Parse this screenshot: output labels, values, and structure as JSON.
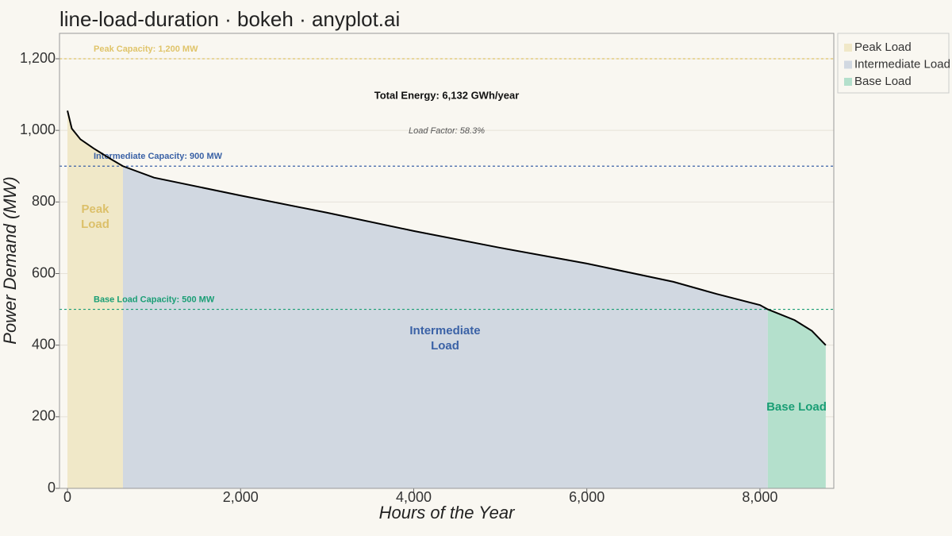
{
  "chart_data": {
    "type": "area",
    "title": "line-load-duration · bokeh · anyplot.ai",
    "x_label": "Hours of the Year",
    "y_label": "Power Demand (MW)",
    "xlim": [
      -92,
      8853
    ],
    "ylim": [
      0,
      1271
    ],
    "xticks": [
      0,
      {
        "value": 2000,
        "label": "2,000"
      },
      {
        "value": 4000,
        "label": "4,000"
      },
      {
        "value": 6000,
        "label": "6,000"
      },
      {
        "value": 8000,
        "label": "8,000"
      }
    ],
    "yticks": [
      0,
      200,
      400,
      600,
      800,
      {
        "value": 1000,
        "label": "1,000"
      },
      {
        "value": 1200,
        "label": "1,200"
      }
    ],
    "grid": true,
    "legend": "right",
    "series": [
      {
        "name": "Peak Load",
        "color": "#f0e8c8",
        "label_color": "#dcc06a",
        "label_lines": [
          "Peak",
          "Load"
        ],
        "x": [
          0,
          50,
          150,
          300,
          500,
          641
        ],
        "values": [
          1055,
          1005,
          975,
          950,
          920,
          900
        ]
      },
      {
        "name": "Intermediate Load",
        "color": "#d1d8e1",
        "label_color": "#3b62a6",
        "label_lines": [
          "Intermediate",
          "Load"
        ],
        "x": [
          641,
          1000,
          2000,
          3000,
          4000,
          5000,
          6000,
          7000,
          7500,
          8000,
          8091
        ],
        "values": [
          900,
          868,
          818,
          770,
          719,
          672,
          628,
          577,
          543,
          512,
          500
        ]
      },
      {
        "name": "Base Load",
        "color": "#b4e0cc",
        "label_color": "#1a9e75",
        "label_lines": [
          "Base Load"
        ],
        "x": [
          8091,
          8400,
          8600,
          8700,
          8760
        ],
        "values": [
          500,
          470,
          440,
          415,
          400
        ]
      }
    ],
    "curve": {
      "color": "#000000",
      "x": [
        0,
        50,
        150,
        300,
        500,
        641,
        1000,
        2000,
        3000,
        4000,
        5000,
        6000,
        7000,
        7500,
        8000,
        8091,
        8400,
        8600,
        8700,
        8760
      ],
      "values": [
        1055,
        1005,
        975,
        950,
        920,
        900,
        868,
        818,
        770,
        719,
        672,
        628,
        577,
        543,
        512,
        500,
        470,
        440,
        415,
        400
      ]
    },
    "reference_lines": [
      {
        "value": 1200,
        "label": "Peak Capacity: 1,200 MW",
        "color": "#e0c46a"
      },
      {
        "value": 900,
        "label": "Intermediate Capacity: 900 MW",
        "color": "#3b62a6"
      },
      {
        "value": 500,
        "label": "Base Load Capacity: 500 MW",
        "color": "#1a9e75"
      }
    ],
    "annotations": [
      "Total Energy: 6,132 GWh/year",
      "Load Factor: 58.3%"
    ]
  }
}
